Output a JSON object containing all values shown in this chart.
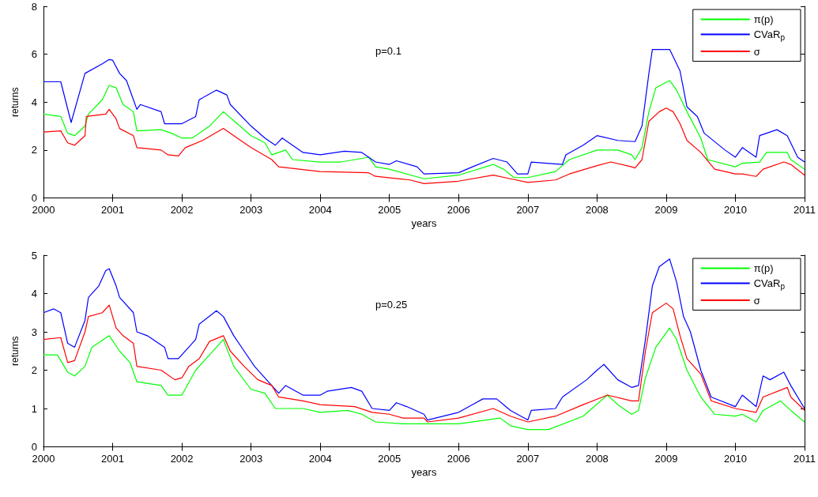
{
  "chart_data": [
    {
      "type": "line",
      "xlabel": "years",
      "ylabel": "returns",
      "annotations": [
        "p=0.1"
      ],
      "xlim": [
        2000,
        2011
      ],
      "xticks": [
        2000,
        2001,
        2002,
        2003,
        2004,
        2005,
        2006,
        2007,
        2008,
        2009,
        2010,
        2011
      ],
      "ylim": [
        0,
        8
      ],
      "yticks": [
        0,
        2,
        4,
        6,
        8
      ],
      "grid": false,
      "legend": "top right",
      "marker": "none",
      "line_style": "solid",
      "series": [
        {
          "name": "π(p)",
          "color": "#00ff00",
          "x": [
            2000,
            2000.25,
            2000.35,
            2000.45,
            2000.6,
            2000.65,
            2000.85,
            2000.95,
            2001.05,
            2001.15,
            2001.3,
            2001.35,
            2001.7,
            2001.85,
            2002,
            2002.15,
            2002.4,
            2002.6,
            2002.8,
            2003,
            2003.2,
            2003.3,
            2003.5,
            2003.6,
            2004,
            2004.3,
            2004.7,
            2004.8,
            2005,
            2005.5,
            2006,
            2006.5,
            2006.65,
            2006.8,
            2007,
            2007.4,
            2007.6,
            2008,
            2008.3,
            2008.5,
            2008.55,
            2008.65,
            2008.75,
            2008.85,
            2009.05,
            2009.15,
            2009.3,
            2009.5,
            2009.6,
            2010,
            2010.1,
            2010.35,
            2010.45,
            2010.75,
            2010.8,
            2011
          ],
          "values": [
            3.5,
            3.4,
            2.7,
            2.6,
            3.0,
            3.5,
            4.1,
            4.7,
            4.6,
            3.9,
            3.6,
            2.8,
            2.85,
            2.7,
            2.5,
            2.5,
            3.0,
            3.6,
            3.1,
            2.6,
            2.3,
            1.8,
            2.0,
            1.6,
            1.5,
            1.5,
            1.7,
            1.3,
            1.2,
            0.8,
            0.95,
            1.4,
            1.2,
            0.85,
            0.85,
            1.1,
            1.6,
            2.0,
            2.0,
            1.8,
            1.6,
            2.1,
            3.6,
            4.6,
            4.9,
            4.5,
            3.6,
            2.5,
            1.6,
            1.3,
            1.45,
            1.5,
            1.9,
            1.9,
            1.6,
            1.2
          ]
        },
        {
          "name": "CVaR$_{p}$",
          "color": "#0000ff",
          "x": [
            2000,
            2000.25,
            2000.4,
            2000.6,
            2000.85,
            2000.95,
            2001,
            2001.1,
            2001.2,
            2001.3,
            2001.35,
            2001.4,
            2001.7,
            2001.75,
            2002,
            2002.2,
            2002.25,
            2002.5,
            2002.65,
            2002.7,
            2003,
            2003.2,
            2003.35,
            2003.45,
            2003.75,
            2004,
            2004.35,
            2004.6,
            2004.8,
            2005,
            2005.1,
            2005.4,
            2005.5,
            2006,
            2006.2,
            2006.5,
            2006.7,
            2006.85,
            2007,
            2007.05,
            2007.5,
            2007.55,
            2007.8,
            2008,
            2008.3,
            2008.55,
            2008.65,
            2008.75,
            2008.8,
            2009.05,
            2009.2,
            2009.3,
            2009.45,
            2009.55,
            2009.85,
            2010,
            2010.1,
            2010.3,
            2010.35,
            2010.6,
            2010.75,
            2010.9,
            2011
          ],
          "values": [
            4.85,
            4.85,
            3.15,
            5.2,
            5.6,
            5.78,
            5.75,
            5.2,
            4.9,
            4.1,
            3.7,
            3.9,
            3.6,
            3.1,
            3.1,
            3.4,
            4.1,
            4.5,
            4.3,
            3.9,
            3.0,
            2.5,
            2.2,
            2.5,
            1.9,
            1.8,
            1.95,
            1.9,
            1.5,
            1.4,
            1.55,
            1.3,
            1.0,
            1.05,
            1.3,
            1.65,
            1.5,
            1.0,
            1.0,
            1.5,
            1.4,
            1.8,
            2.2,
            2.6,
            2.4,
            2.35,
            3.0,
            5.2,
            6.2,
            6.2,
            5.3,
            3.8,
            3.4,
            2.7,
            2.0,
            1.7,
            2.1,
            1.7,
            2.6,
            2.85,
            2.6,
            1.7,
            1.5
          ]
        },
        {
          "name": "σ",
          "color": "#ff0000",
          "x": [
            2000,
            2000.25,
            2000.35,
            2000.45,
            2000.6,
            2000.62,
            2000.9,
            2000.95,
            2001.05,
            2001.1,
            2001.3,
            2001.35,
            2001.7,
            2001.8,
            2001.95,
            2002.05,
            2002.3,
            2002.6,
            2002.8,
            2003,
            2003.3,
            2003.4,
            2004,
            2004.7,
            2004.8,
            2005.3,
            2005.5,
            2006,
            2006.5,
            2006.75,
            2007,
            2007.4,
            2007.6,
            2008,
            2008.2,
            2008.5,
            2008.55,
            2008.65,
            2008.75,
            2008.9,
            2009,
            2009.1,
            2009.2,
            2009.3,
            2009.5,
            2009.7,
            2010,
            2010.1,
            2010.3,
            2010.4,
            2010.7,
            2010.8,
            2011
          ],
          "values": [
            2.75,
            2.8,
            2.3,
            2.2,
            2.6,
            3.4,
            3.5,
            3.7,
            3.3,
            2.9,
            2.6,
            2.1,
            2.0,
            1.8,
            1.75,
            2.1,
            2.4,
            2.9,
            2.5,
            2.1,
            1.6,
            1.3,
            1.1,
            1.05,
            0.9,
            0.75,
            0.6,
            0.7,
            0.95,
            0.8,
            0.65,
            0.75,
            1.0,
            1.35,
            1.5,
            1.3,
            1.25,
            1.6,
            3.2,
            3.6,
            3.75,
            3.6,
            3.1,
            2.4,
            1.9,
            1.2,
            1.0,
            1.0,
            0.9,
            1.2,
            1.5,
            1.4,
            0.95
          ]
        }
      ]
    },
    {
      "type": "line",
      "xlabel": "years",
      "ylabel": "returns",
      "annotations": [
        "p=0.25"
      ],
      "xlim": [
        2000,
        2011
      ],
      "xticks": [
        2000,
        2001,
        2002,
        2003,
        2004,
        2005,
        2006,
        2007,
        2008,
        2009,
        2010,
        2011
      ],
      "ylim": [
        0,
        5
      ],
      "yticks": [
        0,
        1,
        2,
        3,
        4,
        5
      ],
      "grid": false,
      "legend": "top right",
      "marker": "none",
      "line_style": "solid",
      "series": [
        {
          "name": "π(p)",
          "color": "#00ff00",
          "x": [
            2000,
            2000.2,
            2000.35,
            2000.45,
            2000.6,
            2000.7,
            2000.95,
            2001.1,
            2001.25,
            2001.35,
            2001.7,
            2001.8,
            2002,
            2002.2,
            2002.4,
            2002.6,
            2002.75,
            2003,
            2003.2,
            2003.35,
            2003.75,
            2004,
            2004.4,
            2004.6,
            2004.8,
            2005.2,
            2005.5,
            2006,
            2006.6,
            2006.75,
            2007,
            2007.3,
            2007.8,
            2008.15,
            2008.3,
            2008.5,
            2008.6,
            2008.7,
            2008.85,
            2009.05,
            2009.15,
            2009.3,
            2009.5,
            2009.7,
            2010,
            2010.1,
            2010.3,
            2010.4,
            2010.65,
            2010.8,
            2011
          ],
          "values": [
            2.4,
            2.4,
            1.95,
            1.85,
            2.1,
            2.6,
            2.9,
            2.5,
            2.2,
            1.7,
            1.6,
            1.35,
            1.35,
            2.0,
            2.4,
            2.8,
            2.1,
            1.5,
            1.4,
            1.0,
            1.0,
            0.9,
            0.95,
            0.85,
            0.65,
            0.6,
            0.6,
            0.6,
            0.75,
            0.55,
            0.45,
            0.45,
            0.8,
            1.35,
            1.1,
            0.85,
            0.95,
            1.8,
            2.6,
            3.1,
            2.8,
            2.0,
            1.3,
            0.85,
            0.8,
            0.85,
            0.65,
            0.95,
            1.2,
            0.95,
            0.65
          ]
        },
        {
          "name": "CVaR$_{p}$",
          "color": "#0000ff",
          "x": [
            2000,
            2000.15,
            2000.25,
            2000.35,
            2000.45,
            2000.6,
            2000.65,
            2000.8,
            2000.9,
            2000.95,
            2001.05,
            2001.1,
            2001.3,
            2001.35,
            2001.5,
            2001.75,
            2001.8,
            2001.95,
            2002.1,
            2002.2,
            2002.25,
            2002.5,
            2002.6,
            2002.75,
            2002.9,
            2003.05,
            2003.25,
            2003.4,
            2003.5,
            2003.75,
            2004,
            2004.1,
            2004.45,
            2004.6,
            2004.75,
            2005,
            2005.1,
            2005.25,
            2005.5,
            2005.55,
            2006,
            2006.35,
            2006.55,
            2006.75,
            2007,
            2007.05,
            2007.4,
            2007.5,
            2007.85,
            2008,
            2008.1,
            2008.3,
            2008.5,
            2008.6,
            2008.7,
            2008.8,
            2008.9,
            2009.05,
            2009.15,
            2009.25,
            2009.35,
            2009.5,
            2009.65,
            2010,
            2010.1,
            2010.3,
            2010.4,
            2010.5,
            2010.7,
            2010.8,
            2011
          ],
          "values": [
            3.5,
            3.6,
            3.5,
            2.7,
            2.6,
            3.3,
            3.9,
            4.2,
            4.6,
            4.65,
            4.2,
            3.9,
            3.5,
            3.0,
            2.9,
            2.6,
            2.3,
            2.3,
            2.6,
            2.8,
            3.2,
            3.55,
            3.4,
            2.9,
            2.5,
            2.1,
            1.7,
            1.4,
            1.6,
            1.35,
            1.35,
            1.45,
            1.55,
            1.45,
            1.0,
            0.95,
            1.15,
            1.05,
            0.85,
            0.7,
            0.9,
            1.25,
            1.25,
            0.95,
            0.7,
            0.95,
            1.0,
            1.3,
            1.75,
            2.0,
            2.15,
            1.75,
            1.55,
            1.6,
            2.8,
            4.2,
            4.7,
            4.9,
            4.3,
            3.4,
            3.0,
            2.0,
            1.3,
            1.05,
            1.35,
            1.05,
            1.85,
            1.75,
            1.95,
            1.6,
            1.0
          ]
        },
        {
          "name": "σ",
          "color": "#ff0000",
          "x": [
            2000,
            2000.25,
            2000.35,
            2000.45,
            2000.6,
            2000.65,
            2000.85,
            2000.95,
            2001.05,
            2001.15,
            2001.3,
            2001.35,
            2001.7,
            2001.9,
            2002,
            2002.1,
            2002.25,
            2002.4,
            2002.6,
            2002.7,
            2002.9,
            2003.1,
            2003.3,
            2003.4,
            2003.75,
            2004,
            2004.5,
            2004.75,
            2005,
            2005.2,
            2005.5,
            2005.55,
            2006,
            2006.5,
            2006.75,
            2007,
            2007.4,
            2007.8,
            2008.15,
            2008.5,
            2008.6,
            2008.7,
            2008.8,
            2009,
            2009.1,
            2009.2,
            2009.3,
            2009.5,
            2009.65,
            2010,
            2010.3,
            2010.4,
            2010.75,
            2010.8,
            2011
          ],
          "values": [
            2.8,
            2.85,
            2.2,
            2.25,
            3.0,
            3.4,
            3.5,
            3.7,
            3.1,
            2.9,
            2.7,
            2.1,
            2.0,
            1.75,
            1.8,
            2.1,
            2.3,
            2.75,
            2.9,
            2.5,
            2.1,
            1.75,
            1.6,
            1.3,
            1.2,
            1.1,
            1.05,
            0.9,
            0.85,
            0.75,
            0.75,
            0.65,
            0.75,
            1.0,
            0.8,
            0.65,
            0.8,
            1.1,
            1.35,
            1.2,
            1.2,
            2.5,
            3.5,
            3.75,
            3.6,
            2.9,
            2.3,
            1.9,
            1.2,
            1.0,
            0.9,
            1.3,
            1.55,
            1.3,
            0.95
          ]
        }
      ]
    }
  ]
}
